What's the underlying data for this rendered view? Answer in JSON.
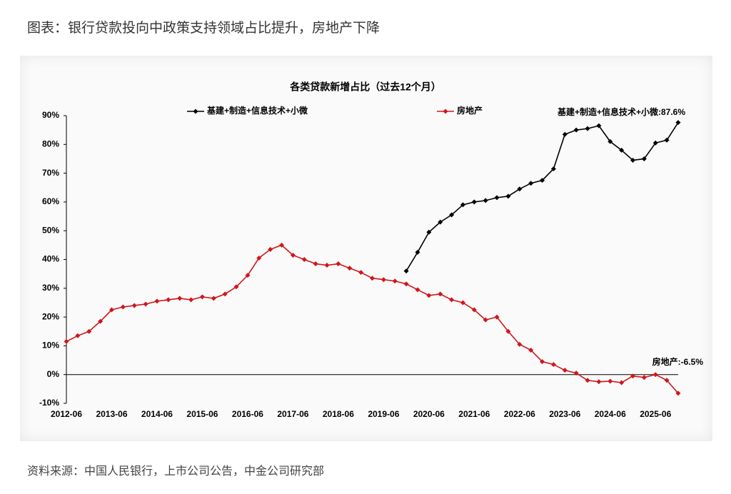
{
  "header": {
    "title": "图表：银行贷款投向中政策支持领域占比提升，房地产下降"
  },
  "footer": {
    "source": "资料来源：中国人民银行，上市公司公告，中金公司研究部"
  },
  "chart_data": {
    "type": "line",
    "title": "各类贷款新增占比（过去12个月）",
    "categories": [
      "2012-06",
      null,
      null,
      null,
      "2013-06",
      null,
      null,
      null,
      "2014-06",
      null,
      null,
      null,
      "2015-06",
      null,
      null,
      null,
      "2016-06",
      null,
      null,
      null,
      "2017-06",
      null,
      null,
      null,
      "2018-06",
      null,
      null,
      null,
      "2019-06",
      null,
      null,
      null,
      "2020-06",
      null,
      null,
      null,
      "2021-06",
      null,
      null,
      null,
      "2022-06",
      null,
      null,
      null,
      "2023-06",
      null,
      null,
      null,
      "2024-06",
      null,
      null,
      null,
      "2025-06",
      null,
      null
    ],
    "series": [
      {
        "name": "基建+制造+信息技术+小微",
        "color": "#000000",
        "values": [
          null,
          null,
          null,
          null,
          null,
          null,
          null,
          null,
          null,
          null,
          null,
          null,
          null,
          null,
          null,
          null,
          null,
          null,
          null,
          null,
          null,
          null,
          null,
          null,
          null,
          null,
          null,
          null,
          null,
          null,
          36,
          42.5,
          49.5,
          53,
          55.5,
          59,
          60,
          60.5,
          61.5,
          62,
          64.5,
          66.5,
          67.5,
          71.5,
          83.5,
          85,
          85.5,
          86.5,
          81,
          78,
          74.5,
          75,
          80.5,
          81.5,
          87.6
        ]
      },
      {
        "name": "房地产",
        "color": "#d0161b",
        "values": [
          11.5,
          13.5,
          15,
          18.5,
          22.5,
          23.5,
          24,
          24.5,
          25.5,
          26,
          26.5,
          26,
          27,
          26.5,
          28,
          30.5,
          34.5,
          40.5,
          43.5,
          45,
          41.5,
          40,
          38.5,
          38,
          38.5,
          37,
          35.5,
          33.5,
          33,
          32.5,
          31.5,
          29.5,
          27.5,
          28,
          26,
          25,
          22.5,
          19,
          20,
          15,
          10.5,
          8.5,
          4.5,
          3.5,
          1.5,
          0.5,
          -2,
          -2.5,
          -2.3,
          -2.8,
          -0.5,
          -1,
          0,
          -2,
          -6.5
        ]
      }
    ],
    "annotations": [
      "基建+制造+信息技术+小微:87.6%",
      "房地产:-6.5%"
    ],
    "ylim": [
      -10,
      90
    ],
    "yticks": [
      {
        "value": -10,
        "label": "-10%"
      },
      {
        "value": 0,
        "label": "0%"
      },
      {
        "value": 10,
        "label": "10%"
      },
      {
        "value": 20,
        "label": "20%"
      },
      {
        "value": 30,
        "label": "30%"
      },
      {
        "value": 40,
        "label": "40%"
      },
      {
        "value": 50,
        "label": "50%"
      },
      {
        "value": 60,
        "label": "60%"
      },
      {
        "value": 70,
        "label": "70%"
      },
      {
        "value": 80,
        "label": "80%"
      },
      {
        "value": 90,
        "label": "90%"
      }
    ],
    "grid": false
  }
}
